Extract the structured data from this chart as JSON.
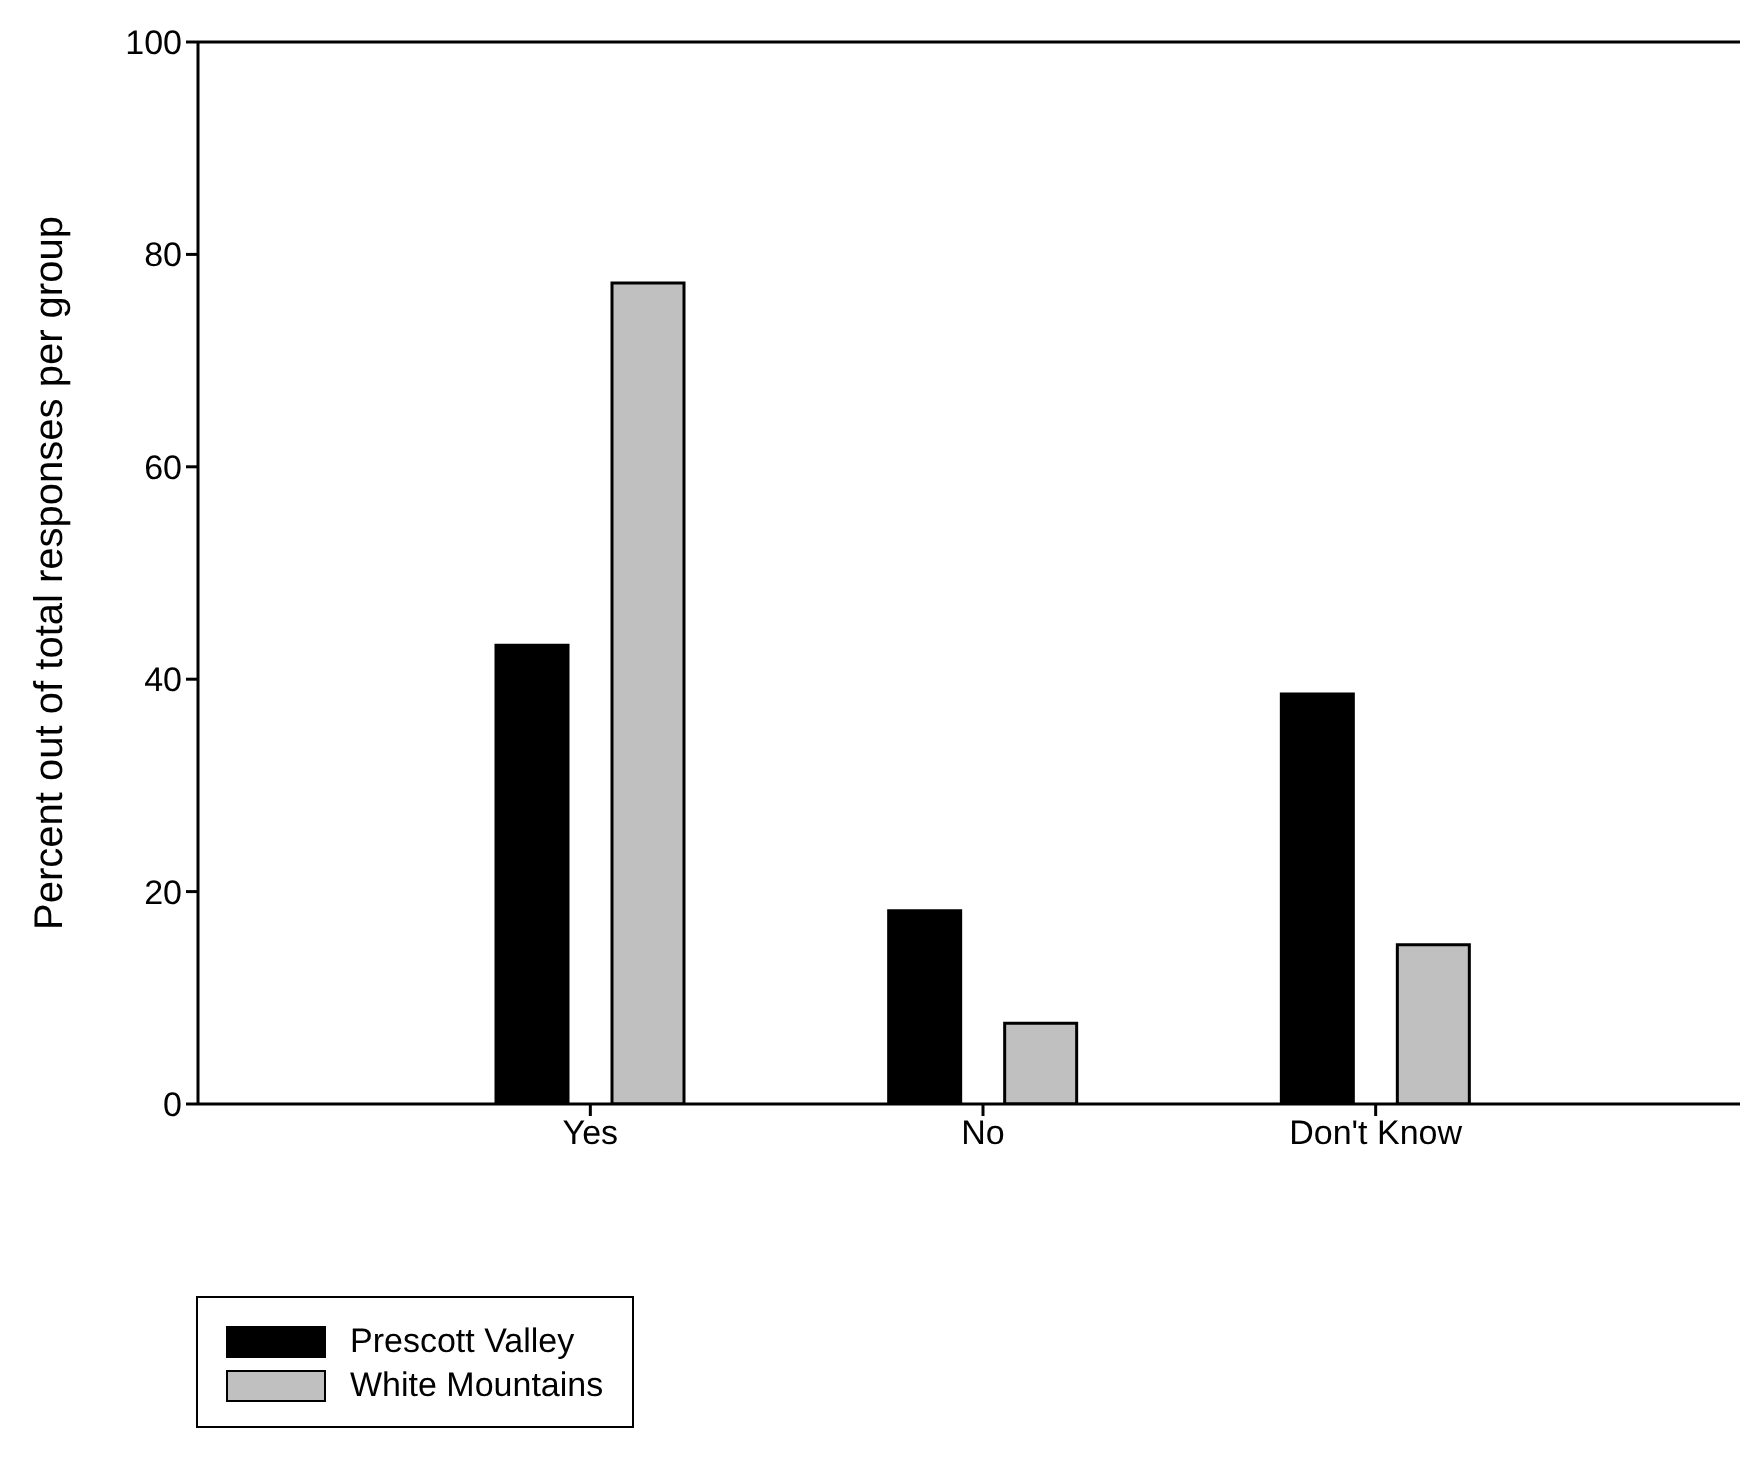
{
  "chart_data": {
    "type": "bar",
    "ylabel": "Percent out of total responses per group",
    "categories": [
      "Yes",
      "No",
      "Don't Know"
    ],
    "series": [
      {
        "name": "Prescott Valley",
        "color": "#000000",
        "values": [
          43.2,
          18.2,
          38.6
        ]
      },
      {
        "name": "White Mountains",
        "color": "#c0c0c0",
        "values": [
          77.3,
          7.6,
          15.0
        ]
      }
    ],
    "ylim": [
      0,
      100
    ],
    "yticks": [
      0,
      20,
      40,
      60,
      80,
      100
    ],
    "grid": false,
    "legend": "bottom left"
  }
}
